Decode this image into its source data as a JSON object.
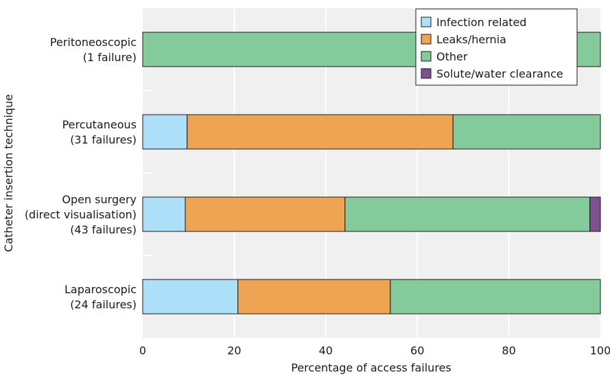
{
  "chart_data": {
    "type": "bar",
    "orientation": "horizontal",
    "stacked": true,
    "xlabel": "Percentage of access failures",
    "ylabel": "Catheter insertion technique",
    "xlim": [
      0,
      100
    ],
    "xticks": [
      0,
      20,
      40,
      60,
      80,
      100
    ],
    "grid": true,
    "legend_position": "top-right",
    "categories": [
      {
        "lines": [
          "Peritoneoscopic",
          "(1 failure)"
        ]
      },
      {
        "lines": [
          "Percutaneous",
          "(31 failures)"
        ]
      },
      {
        "lines": [
          "Open surgery",
          "(direct visualisation)",
          "(43 failures)"
        ]
      },
      {
        "lines": [
          "Laparoscopic",
          "(24 failures)"
        ]
      }
    ],
    "series": [
      {
        "name": "Infection related",
        "color": "#addff8",
        "values": [
          0,
          9.7,
          9.3,
          20.8
        ]
      },
      {
        "name": "Leaks/hernia",
        "color": "#eea452",
        "values": [
          0,
          58.1,
          34.9,
          33.3
        ]
      },
      {
        "name": "Other",
        "color": "#84cb9c",
        "values": [
          100,
          32.2,
          53.5,
          45.9
        ]
      },
      {
        "name": "Solute/water clearance",
        "color": "#7d508e",
        "values": [
          0,
          0,
          2.3,
          0
        ]
      }
    ]
  }
}
